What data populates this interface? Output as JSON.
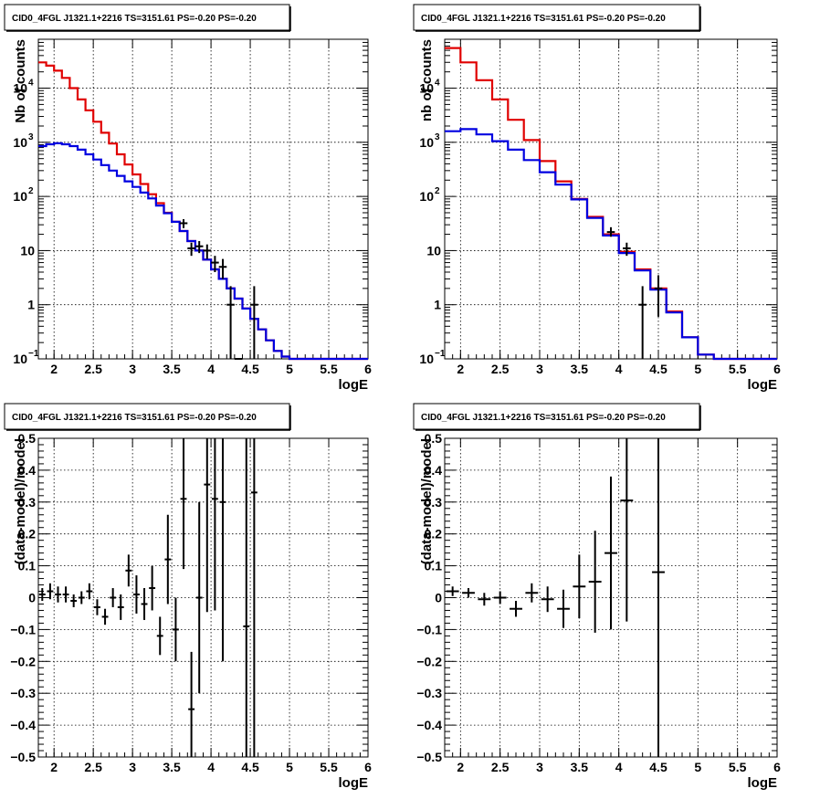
{
  "chart_data": [
    {
      "type": "line",
      "scale": "log-y",
      "title": "CID0_4FGL J1321.1+2216 TS=3151.61 PS=-0.20 PS=-0.20",
      "xlabel": "logE",
      "ylabel": "Nb of counts",
      "xlim": [
        1.8,
        6.0
      ],
      "ylim": [
        0.1,
        80000
      ],
      "grid": true,
      "xticks": [
        "2",
        "2.5",
        "3",
        "3.5",
        "4",
        "4.5",
        "5",
        "5.5",
        "6"
      ],
      "yticks": [
        {
          "v": 0.1,
          "label": "10",
          "sup": "−1"
        },
        {
          "v": 1,
          "label": "1",
          "sup": ""
        },
        {
          "v": 10,
          "label": "10",
          "sup": ""
        },
        {
          "v": 100,
          "label": "10",
          "sup": "2"
        },
        {
          "v": 1000,
          "label": "10",
          "sup": "3"
        },
        {
          "v": 10000,
          "label": "10",
          "sup": "4"
        }
      ],
      "bin_edges": [
        1.8,
        1.9,
        2.0,
        2.1,
        2.2,
        2.3,
        2.4,
        2.5,
        2.6,
        2.7,
        2.8,
        2.9,
        3.0,
        3.1,
        3.2,
        3.3,
        3.4,
        3.5,
        3.6,
        3.7,
        3.8,
        3.9,
        4.0,
        4.1,
        4.2,
        4.3,
        4.4,
        4.5,
        4.6,
        4.7,
        4.8,
        4.9,
        5.0,
        5.1,
        5.2,
        5.3,
        5.4,
        5.5,
        5.6,
        5.7,
        5.8,
        5.9,
        6.0
      ],
      "series": [
        {
          "color": "#e00000",
          "values": [
            30000,
            26000,
            21000,
            15500,
            10000,
            6200,
            3900,
            2400,
            1500,
            950,
            600,
            390,
            255,
            170,
            110,
            75,
            50,
            34,
            23,
            15,
            10,
            6.8,
            4.5,
            3.0,
            2.0,
            1.3,
            0.85,
            0.55,
            0.35,
            0.22,
            0.14,
            0.11,
            0.1,
            0.1,
            0.1,
            0.1,
            0.1,
            0.1,
            0.1,
            0.1,
            0.1,
            0.1
          ]
        },
        {
          "color": "#0000e0",
          "values": [
            850,
            920,
            960,
            920,
            850,
            730,
            600,
            480,
            380,
            300,
            240,
            190,
            150,
            118,
            92,
            68,
            49,
            34,
            23,
            15,
            10,
            6.8,
            4.5,
            3.0,
            2.0,
            1.3,
            0.85,
            0.55,
            0.35,
            0.22,
            0.14,
            0.11,
            0.1,
            0.1,
            0.1,
            0.1,
            0.1,
            0.1,
            0.1,
            0.1,
            0.1,
            0.1
          ]
        }
      ],
      "points": [
        {
          "x": 3.65,
          "y": 32,
          "ylo": 26,
          "yhi": 38
        },
        {
          "x": 3.75,
          "y": 11,
          "ylo": 8,
          "yhi": 14
        },
        {
          "x": 3.85,
          "y": 12,
          "ylo": 9,
          "yhi": 15
        },
        {
          "x": 3.95,
          "y": 10,
          "ylo": 7,
          "yhi": 13
        },
        {
          "x": 4.05,
          "y": 6,
          "ylo": 4,
          "yhi": 8
        },
        {
          "x": 4.15,
          "y": 5,
          "ylo": 3,
          "yhi": 7
        },
        {
          "x": 4.25,
          "y": 1,
          "ylo": 0.1,
          "yhi": 2.2
        },
        {
          "x": 4.35,
          "y": 0.1,
          "ylo": 0.1,
          "yhi": 0.1
        },
        {
          "x": 4.55,
          "y": 1,
          "ylo": 0.1,
          "yhi": 2.2
        }
      ]
    },
    {
      "type": "line",
      "scale": "log-y",
      "title": "CID0_4FGL J1321.1+2216 TS=3151.61 PS=-0.20 PS=-0.20",
      "xlabel": "logE",
      "ylabel": "nb of counts",
      "xlim": [
        1.8,
        6.0
      ],
      "ylim": [
        0.1,
        80000
      ],
      "grid": true,
      "xticks": [
        "2",
        "2.5",
        "3",
        "3.5",
        "4",
        "4.5",
        "5",
        "5.5",
        "6"
      ],
      "yticks": [
        {
          "v": 0.1,
          "label": "10",
          "sup": "−1"
        },
        {
          "v": 1,
          "label": "1",
          "sup": ""
        },
        {
          "v": 10,
          "label": "10",
          "sup": ""
        },
        {
          "v": 100,
          "label": "10",
          "sup": "2"
        },
        {
          "v": 1000,
          "label": "10",
          "sup": "3"
        },
        {
          "v": 10000,
          "label": "10",
          "sup": "4"
        }
      ],
      "bin_edges": [
        1.8,
        2.0,
        2.2,
        2.4,
        2.6,
        2.8,
        3.0,
        3.2,
        3.4,
        3.6,
        3.8,
        4.0,
        4.2,
        4.4,
        4.6,
        4.8,
        5.0,
        5.2,
        5.4,
        5.6,
        5.8,
        6.0
      ],
      "series": [
        {
          "color": "#e00000",
          "values": [
            55000,
            30000,
            14000,
            6200,
            2600,
            1100,
            450,
            190,
            90,
            42,
            20,
            9.5,
            4.5,
            2.0,
            0.75,
            0.25,
            0.12,
            0.1,
            0.1,
            0.1,
            0.1
          ]
        },
        {
          "color": "#0000e0",
          "values": [
            1600,
            1750,
            1400,
            1050,
            730,
            470,
            280,
            165,
            88,
            40,
            19,
            9,
            4.3,
            1.9,
            0.72,
            0.25,
            0.12,
            0.1,
            0.1,
            0.1,
            0.1
          ]
        }
      ],
      "points": [
        {
          "x": 3.9,
          "y": 22,
          "ylo": 18,
          "yhi": 27
        },
        {
          "x": 4.1,
          "y": 11,
          "ylo": 8,
          "yhi": 14
        },
        {
          "x": 4.3,
          "y": 1,
          "ylo": 0.1,
          "yhi": 2.2
        },
        {
          "x": 4.5,
          "y": 2,
          "ylo": 0.6,
          "yhi": 3.5
        }
      ]
    },
    {
      "type": "scatter",
      "title": "CID0_4FGL J1321.1+2216 TS=3151.61 PS=-0.20 PS=-0.20",
      "xlabel": "logE",
      "ylabel": "(data-model)/model",
      "xlim": [
        1.8,
        6.0
      ],
      "ylim": [
        -0.5,
        0.5
      ],
      "grid": true,
      "xticks": [
        "2",
        "2.5",
        "3",
        "3.5",
        "4",
        "4.5",
        "5",
        "5.5",
        "6"
      ],
      "yticks": [
        "−0.5",
        "−0.4",
        "−0.3",
        "−0.2",
        "−0.1",
        "0",
        "0.1",
        "0.2",
        "0.3",
        "0.4",
        "0.5"
      ],
      "points": [
        {
          "x": 1.85,
          "y": 0.01,
          "err": 0.02,
          "xerr": 0.05
        },
        {
          "x": 1.95,
          "y": 0.02,
          "err": 0.025,
          "xerr": 0.05
        },
        {
          "x": 2.05,
          "y": 0.01,
          "err": 0.025,
          "xerr": 0.05
        },
        {
          "x": 2.15,
          "y": 0.01,
          "err": 0.025,
          "xerr": 0.05
        },
        {
          "x": 2.25,
          "y": -0.01,
          "err": 0.02,
          "xerr": 0.05
        },
        {
          "x": 2.35,
          "y": 0.0,
          "err": 0.02,
          "xerr": 0.05
        },
        {
          "x": 2.45,
          "y": 0.02,
          "err": 0.025,
          "xerr": 0.05
        },
        {
          "x": 2.55,
          "y": -0.03,
          "err": 0.025,
          "xerr": 0.05
        },
        {
          "x": 2.65,
          "y": -0.06,
          "err": 0.025,
          "xerr": 0.05
        },
        {
          "x": 2.75,
          "y": 0.0,
          "err": 0.03,
          "xerr": 0.05
        },
        {
          "x": 2.85,
          "y": -0.03,
          "err": 0.04,
          "xerr": 0.05
        },
        {
          "x": 2.95,
          "y": 0.085,
          "err": 0.05,
          "xerr": 0.05
        },
        {
          "x": 3.05,
          "y": 0.01,
          "err": 0.06,
          "xerr": 0.05
        },
        {
          "x": 3.15,
          "y": -0.02,
          "err": 0.05,
          "xerr": 0.05
        },
        {
          "x": 3.25,
          "y": 0.03,
          "err": 0.07,
          "xerr": 0.05
        },
        {
          "x": 3.35,
          "y": -0.12,
          "err": 0.06,
          "xerr": 0.05
        },
        {
          "x": 3.45,
          "y": 0.12,
          "err": 0.14,
          "xerr": 0.05
        },
        {
          "x": 3.55,
          "y": -0.1,
          "err": 0.1,
          "xerr": 0.05
        },
        {
          "x": 3.65,
          "y": 0.31,
          "err": 0.22,
          "xerr": 0.05
        },
        {
          "x": 3.75,
          "y": -0.35,
          "err": 0.18,
          "xerr": 0.05
        },
        {
          "x": 3.85,
          "y": 0.0,
          "err": 0.3,
          "xerr": 0.05
        },
        {
          "x": 3.95,
          "y": 0.355,
          "err": 0.4,
          "xerr": 0.05
        },
        {
          "x": 4.05,
          "y": 0.31,
          "err": 0.35,
          "xerr": 0.05
        },
        {
          "x": 4.15,
          "y": 0.3,
          "err": 0.5,
          "xerr": 0.05
        },
        {
          "x": 4.45,
          "y": -0.09,
          "err": 0.6,
          "xerr": 0.05
        },
        {
          "x": 4.55,
          "y": 0.33,
          "err": 1.0,
          "xerr": 0.05
        }
      ]
    },
    {
      "type": "scatter",
      "title": "CID0_4FGL J1321.1+2216 TS=3151.61 PS=-0.20 PS=-0.20",
      "xlabel": "logE",
      "ylabel": "(data-model)/model",
      "xlim": [
        1.8,
        6.0
      ],
      "ylim": [
        -0.5,
        0.5
      ],
      "grid": true,
      "xticks": [
        "2",
        "2.5",
        "3",
        "3.5",
        "4",
        "4.5",
        "5",
        "5.5",
        "6"
      ],
      "yticks": [
        "−0.5",
        "−0.4",
        "−0.3",
        "−0.2",
        "−0.1",
        "0",
        "0.1",
        "0.2",
        "0.3",
        "0.4",
        "0.5"
      ],
      "points": [
        {
          "x": 1.9,
          "y": 0.02,
          "err": 0.015,
          "xerr": 0.1
        },
        {
          "x": 2.1,
          "y": 0.015,
          "err": 0.015,
          "xerr": 0.1
        },
        {
          "x": 2.3,
          "y": -0.005,
          "err": 0.02,
          "xerr": 0.1
        },
        {
          "x": 2.5,
          "y": 0.0,
          "err": 0.02,
          "xerr": 0.1
        },
        {
          "x": 2.7,
          "y": -0.035,
          "err": 0.025,
          "xerr": 0.1
        },
        {
          "x": 2.9,
          "y": 0.015,
          "err": 0.03,
          "xerr": 0.1
        },
        {
          "x": 3.1,
          "y": -0.005,
          "err": 0.04,
          "xerr": 0.1
        },
        {
          "x": 3.3,
          "y": -0.035,
          "err": 0.06,
          "xerr": 0.1
        },
        {
          "x": 3.5,
          "y": 0.035,
          "err": 0.1,
          "xerr": 0.1
        },
        {
          "x": 3.7,
          "y": 0.05,
          "err": 0.16,
          "xerr": 0.1
        },
        {
          "x": 3.9,
          "y": 0.14,
          "err": 0.24,
          "xerr": 0.1
        },
        {
          "x": 4.1,
          "y": 0.305,
          "err": 0.38,
          "xerr": 0.1
        },
        {
          "x": 4.5,
          "y": 0.08,
          "err": 1.0,
          "xerr": 0.1
        }
      ]
    }
  ]
}
